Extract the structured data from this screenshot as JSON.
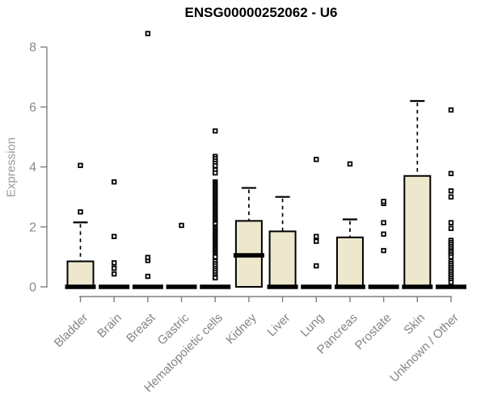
{
  "chart_data": {
    "type": "box",
    "title": "ENSG00000252062 - U6",
    "ylabel": "Expression",
    "xlabel": "",
    "ylim": [
      0,
      8
    ],
    "yticks": [
      0,
      2,
      4,
      6,
      8
    ],
    "grid": false,
    "legend": null,
    "colors": {
      "box_fill": "#EDE8CD",
      "box_stroke": "#000000",
      "axis": "#808080",
      "tick_label": "#8a8a8a",
      "category_label": "#848484",
      "title": "#000000"
    },
    "marker": "open-square",
    "categories": [
      "Bladder",
      "Brain",
      "Breast",
      "Gastric",
      "Hematopoietic cells",
      "Kidney",
      "Liver",
      "Lung",
      "Pancreas",
      "Prostate",
      "Skin",
      "Unknown / Other"
    ],
    "series": [
      {
        "label": "Bladder",
        "q1": 0,
        "median": 0,
        "q3": 0.85,
        "whisker_low": 0,
        "whisker_high": 2.15,
        "outliers": [
          2.5,
          4.05
        ]
      },
      {
        "label": "Brain",
        "q1": 0,
        "median": 0,
        "q3": 0,
        "whisker_low": 0,
        "whisker_high": 0,
        "outliers": [
          0.43,
          0.62,
          0.8,
          1.68,
          3.5
        ]
      },
      {
        "label": "Breast",
        "q1": 0,
        "median": 0,
        "q3": 0,
        "whisker_low": 0,
        "whisker_high": 0,
        "outliers": [
          0.35,
          0.88,
          0.98,
          8.45
        ]
      },
      {
        "label": "Gastric",
        "q1": 0,
        "median": 0,
        "q3": 0,
        "whisker_low": 0,
        "whisker_high": 0,
        "outliers": [
          2.05
        ]
      },
      {
        "label": "Hematopoietic cells",
        "q1": 0,
        "median": 0,
        "q3": 0,
        "whisker_low": 0,
        "whisker_high": 0,
        "outliers": [
          5.2,
          4.35,
          4.28,
          4.2,
          4.12,
          4.04,
          3.9,
          3.8,
          3.5,
          3.45,
          3.4,
          3.35,
          3.3,
          3.25,
          3.2,
          3.15,
          3.1,
          3.05,
          3.0,
          2.95,
          2.9,
          2.85,
          2.8,
          2.75,
          2.7,
          2.65,
          2.6,
          2.55,
          2.5,
          2.45,
          2.4,
          2.35,
          2.3,
          2.25,
          2.2,
          2.15,
          2.1,
          2.0,
          1.95,
          1.9,
          1.85,
          1.8,
          1.75,
          1.7,
          1.65,
          1.6,
          1.55,
          1.5,
          1.45,
          1.4,
          1.35,
          1.3,
          1.25,
          1.2,
          1.15,
          1.1,
          1.05,
          1.0,
          0.85,
          0.77,
          0.7,
          0.62,
          0.55,
          0.48,
          0.4,
          0.33,
          0.3
        ]
      },
      {
        "label": "Kidney",
        "q1": 0,
        "median": 1.05,
        "q3": 2.2,
        "whisker_low": 0,
        "whisker_high": 3.3,
        "outliers": []
      },
      {
        "label": "Liver",
        "q1": 0,
        "median": 0,
        "q3": 1.85,
        "whisker_low": 0,
        "whisker_high": 3.0,
        "outliers": []
      },
      {
        "label": "Lung",
        "q1": 0,
        "median": 0,
        "q3": 0,
        "whisker_low": 0,
        "whisker_high": 0,
        "outliers": [
          0.7,
          1.52,
          1.68,
          4.25
        ]
      },
      {
        "label": "Pancreas",
        "q1": 0,
        "median": 0,
        "q3": 1.65,
        "whisker_low": 0,
        "whisker_high": 2.25,
        "outliers": [
          4.1
        ]
      },
      {
        "label": "Prostate",
        "q1": 0,
        "median": 0,
        "q3": 0,
        "whisker_low": 0,
        "whisker_high": 0,
        "outliers": [
          1.21,
          1.76,
          2.14,
          2.78,
          2.85
        ]
      },
      {
        "label": "Skin",
        "q1": 0,
        "median": 0,
        "q3": 3.7,
        "whisker_low": 0,
        "whisker_high": 6.2,
        "outliers": []
      },
      {
        "label": "Unknown / Other",
        "q1": 0,
        "median": 0,
        "q3": 0,
        "whisker_low": 0,
        "whisker_high": 0,
        "outliers": [
          5.9,
          3.78,
          3.2,
          3.0,
          2.14,
          1.95,
          1.55,
          1.48,
          1.41,
          1.34,
          1.27,
          1.2,
          1.14,
          1.07,
          1.0,
          0.85,
          0.78,
          0.71,
          0.64,
          0.57,
          0.5,
          0.43,
          0.36,
          0.29,
          0.22,
          0.15
        ]
      }
    ]
  }
}
